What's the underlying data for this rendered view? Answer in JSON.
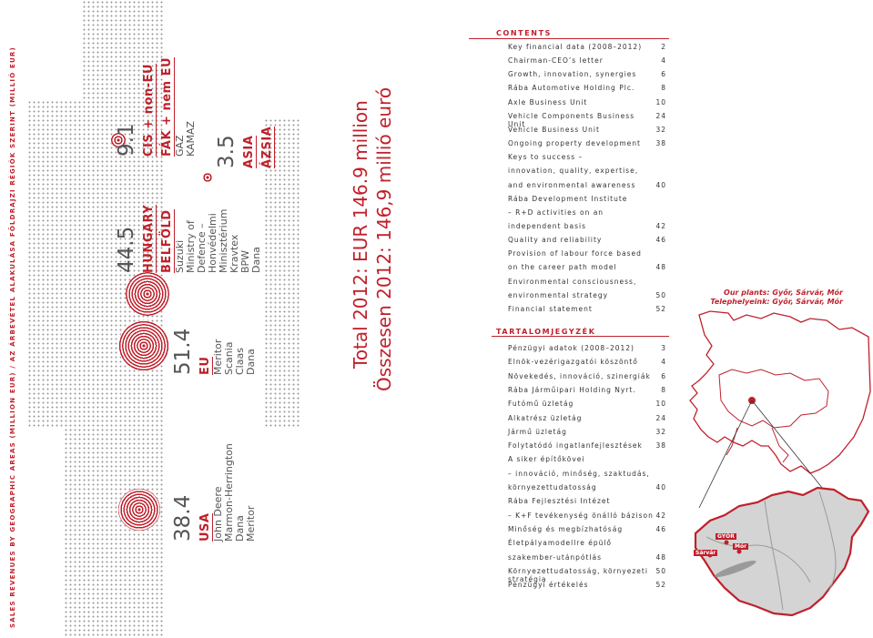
{
  "sidebar_title": "SALES REVENUES BY GEOGRAPHIC AREAS (MILLION EUR) / AZ ÁRBEVÉTEL ALAKULÁSA FÖLDRAJZI RÉGIÓK SZERINT (MILLIÓ EUR)",
  "regions": [
    {
      "value": "38.4",
      "name": "USA",
      "clients": [
        "John Deere",
        "Marmon-Herrington",
        "Dana",
        "Meritor"
      ]
    },
    {
      "value": "51.4",
      "name": "EU",
      "clients": [
        "Meritor",
        "Scania",
        "Claas",
        "Dana"
      ]
    },
    {
      "value": "44.5",
      "name": "HUNGARY",
      "name2": "BELFÖLD",
      "clients": [
        "Suzuki",
        "Ministry of",
        "Defence –",
        "Honvédelmi",
        "Minisztérium",
        "Kravtex",
        "BPW",
        "Dana"
      ]
    },
    {
      "value": "9.1",
      "name": "CIS + non-EU",
      "name2": "FÁK + nem EU",
      "clients": [
        "GAZ",
        "KAMAZ"
      ]
    },
    {
      "value": "3.5",
      "name": "ASIA",
      "name2": "ÁZSIA",
      "clients": []
    }
  ],
  "total_en": "Total 2012: EUR 146.9 million",
  "total_hu": "Összesen 2012: 146,9 millió euró",
  "contents_heading": "CONTENTS",
  "contents": [
    {
      "t": "Key financial data (2008–2012)",
      "p": "2"
    },
    {
      "t": "Chairman-CEO’s letter",
      "p": "4"
    },
    {
      "t": "Growth, innovation, synergies",
      "p": "6"
    },
    {
      "t": "Rába Automotive Holding Plc.",
      "p": "8"
    },
    {
      "t": "Axle Business Unit",
      "p": "10"
    },
    {
      "t": "Vehicle Components Business Unit",
      "p": "24"
    },
    {
      "t": "Vehicle Business Unit",
      "p": "32"
    },
    {
      "t": "Ongoing property development",
      "p": "38"
    },
    {
      "t": "Keys to success –",
      "p": ""
    },
    {
      "t": "innovation, quality, expertise,",
      "p": ""
    },
    {
      "t": "and environmental awareness",
      "p": "40"
    },
    {
      "t": "Rába Development Institute",
      "p": ""
    },
    {
      "t": "– R+D activities on an",
      "p": ""
    },
    {
      "t": "independent basis",
      "p": "42"
    },
    {
      "t": "Quality and reliability",
      "p": "46"
    },
    {
      "t": "Provision of labour force based",
      "p": ""
    },
    {
      "t": "on the career path model",
      "p": "48"
    },
    {
      "t": "Environmental consciousness,",
      "p": ""
    },
    {
      "t": "environmental strategy",
      "p": "50"
    },
    {
      "t": "Financial statement",
      "p": "52"
    }
  ],
  "toc_hu_heading": "TARTALOMJEGYZÉK",
  "toc_hu": [
    {
      "t": "Pénzügyi adatok (2008–2012)",
      "p": "3"
    },
    {
      "t": "Elnök-vezérigazgatói köszöntő",
      "p": "4"
    },
    {
      "t": "Növekedés, innováció, szinergiák",
      "p": "6"
    },
    {
      "t": "Rába Járműipari Holding Nyrt.",
      "p": "8"
    },
    {
      "t": "Futómű üzletág",
      "p": "10"
    },
    {
      "t": "Alkatrész üzletág",
      "p": "24"
    },
    {
      "t": "Jármű üzletág",
      "p": "32"
    },
    {
      "t": "Folytatódó ingatlanfejlesztések",
      "p": "38"
    },
    {
      "t": "A siker építőkövei",
      "p": ""
    },
    {
      "t": "– innováció, minőség, szaktudás,",
      "p": ""
    },
    {
      "t": "környezettudatosság",
      "p": "40"
    },
    {
      "t": "Rába Fejlesztési Intézet",
      "p": ""
    },
    {
      "t": "– K+F tevékenység önálló bázison",
      "p": "42"
    },
    {
      "t": "Minőség és megbízhatóság",
      "p": "46"
    },
    {
      "t": "Életpályamodellre épülő",
      "p": ""
    },
    {
      "t": "szakember-utánpótlás",
      "p": "48"
    },
    {
      "t": "Környezettudatosság, környezeti stratégia",
      "p": "50"
    },
    {
      "t": "Pénzügyi értékelés",
      "p": "52"
    }
  ],
  "plants_en": "Our plants: Győr, Sárvár, Mór",
  "plants_hu": "Telephelyeink: Győr, Sárvár, Mór",
  "cities": [
    "GYŐR",
    "Sárvár",
    "Mór"
  ],
  "accent_color": "#c0202b"
}
